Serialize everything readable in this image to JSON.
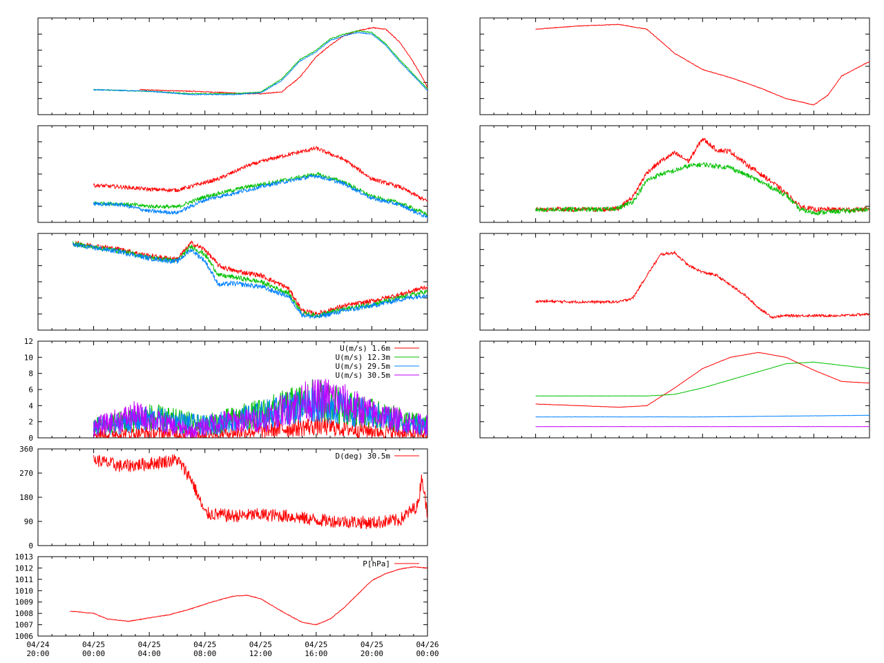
{
  "time_axis": {
    "labels": [
      {
        "date": "04/24",
        "time": "20:00"
      },
      {
        "date": "04/25",
        "time": "00:00"
      },
      {
        "date": "04/25",
        "time": "04:00"
      },
      {
        "date": "04/25",
        "time": "08:00"
      },
      {
        "date": "04/25",
        "time": "12:00"
      },
      {
        "date": "04/25",
        "time": "16:00"
      },
      {
        "date": "04/25",
        "time": "20:00"
      },
      {
        "date": "04/26",
        "time": "00:00"
      }
    ]
  },
  "colors": {
    "red": "#ff0000",
    "green": "#00c000",
    "blue": "#0080ff",
    "purple": "#c000ff"
  },
  "chart_data": [
    {
      "id": "left-1",
      "type": "line",
      "xlim": [
        -4,
        24
      ],
      "ylim": [
        0,
        6
      ],
      "series": [
        {
          "color": "#ff0000",
          "x": [
            3.3,
            5,
            7,
            10,
            10.5,
            12,
            13.5,
            14.8,
            16,
            17,
            18,
            19,
            20,
            21,
            22,
            22.8,
            23.5,
            24
          ],
          "y": [
            1.55,
            1.5,
            1.45,
            1.35,
            1.3,
            1.3,
            1.4,
            2.3,
            3.6,
            4.3,
            4.9,
            5.2,
            5.4,
            5.3,
            4.5,
            3.5,
            2.5,
            1.7
          ]
        },
        {
          "color": "#00c000",
          "x": [
            0,
            4,
            7,
            10,
            12,
            13.5,
            14.8,
            16,
            17,
            18,
            19,
            20,
            21,
            22,
            24
          ],
          "y": [
            1.55,
            1.45,
            1.3,
            1.3,
            1.4,
            2.2,
            3.4,
            4,
            4.7,
            5,
            5.2,
            5.1,
            4.4,
            3.4,
            1.6
          ]
        },
        {
          "color": "#0080ff",
          "x": [
            0,
            4,
            7,
            10,
            12,
            13.5,
            14.8,
            16,
            17,
            18,
            19,
            20,
            21,
            22,
            24
          ],
          "y": [
            1.55,
            1.45,
            1.25,
            1.25,
            1.35,
            2.1,
            3.3,
            3.9,
            4.6,
            4.9,
            5.1,
            5.0,
            4.3,
            3.3,
            1.5
          ]
        }
      ]
    },
    {
      "id": "left-2",
      "type": "line",
      "xlim": [
        -4,
        24
      ],
      "ylim": [
        0,
        6
      ],
      "series": [
        {
          "color": "#ff0000",
          "x": [
            0,
            2,
            4,
            6,
            9,
            11,
            13,
            16,
            18,
            20,
            22,
            24
          ],
          "y": [
            2.3,
            2.2,
            2.05,
            2.0,
            2.7,
            3.5,
            4.0,
            4.6,
            3.9,
            2.7,
            2.2,
            1.3
          ]
        },
        {
          "color": "#00c000",
          "x": [
            0,
            2,
            4,
            6,
            8,
            11,
            13,
            16,
            18,
            20,
            22,
            24
          ],
          "y": [
            1.2,
            1.15,
            1.0,
            0.95,
            1.6,
            2.2,
            2.5,
            3.0,
            2.5,
            1.6,
            1.2,
            0.5
          ]
        },
        {
          "color": "#0080ff",
          "x": [
            0,
            2,
            4,
            6,
            8,
            11,
            13,
            16,
            18,
            20,
            22,
            24
          ],
          "y": [
            1.15,
            1.1,
            0.7,
            0.6,
            1.4,
            2.0,
            2.4,
            2.9,
            2.4,
            1.5,
            1.1,
            0.3
          ]
        }
      ]
    },
    {
      "id": "left-3",
      "type": "line",
      "xlim": [
        -4,
        24
      ],
      "ylim": [
        0,
        6
      ],
      "series": [
        {
          "color": "#ff0000",
          "x": [
            -1.5,
            2,
            4,
            6,
            7,
            8,
            9,
            10,
            12,
            14,
            15,
            16,
            18,
            20,
            22,
            24
          ],
          "y": [
            5.4,
            5.0,
            4.6,
            4.4,
            5.4,
            5.0,
            4.0,
            3.7,
            3.4,
            2.6,
            1.2,
            1.0,
            1.5,
            1.8,
            2.2,
            2.7
          ]
        },
        {
          "color": "#00c000",
          "x": [
            -1.5,
            2,
            4,
            6,
            7,
            8,
            9,
            10,
            12,
            14,
            15,
            16,
            18,
            20,
            22,
            24
          ],
          "y": [
            5.35,
            4.9,
            4.5,
            4.3,
            5.2,
            4.7,
            3.4,
            3.3,
            3.0,
            2.3,
            1.05,
            0.9,
            1.3,
            1.6,
            2.0,
            2.4
          ]
        },
        {
          "color": "#0080ff",
          "x": [
            -1.5,
            2,
            4,
            6,
            7,
            8,
            9,
            10,
            12,
            14,
            15,
            16,
            18,
            20,
            22,
            24
          ],
          "y": [
            5.3,
            4.85,
            4.45,
            4.25,
            5.0,
            4.3,
            2.8,
            2.9,
            2.7,
            2.1,
            0.95,
            0.8,
            1.2,
            1.5,
            1.9,
            2.2
          ]
        }
      ]
    },
    {
      "id": "left-4",
      "type": "line",
      "xlim": [
        -4,
        24
      ],
      "ylim": [
        0,
        12
      ],
      "yticks": [
        "0",
        "2",
        "4",
        "6",
        "8",
        "10",
        "12"
      ],
      "series": [
        {
          "name": "U(m/s)  1.6m",
          "color": "#ff0000",
          "x": [
            0,
            4,
            8,
            12,
            16,
            20,
            24
          ],
          "y": [
            0.5,
            0.6,
            0.5,
            0.9,
            1.5,
            0.9,
            0.4
          ]
        },
        {
          "name": "U(m/s) 12.3m",
          "color": "#00c000",
          "x": [
            0,
            4,
            8,
            12,
            16,
            20,
            24
          ],
          "y": [
            1.4,
            2.6,
            1.6,
            3.0,
            4.8,
            3.0,
            1.5
          ]
        },
        {
          "name": "U(m/s) 29.5m",
          "color": "#0080ff",
          "x": [
            0,
            4,
            8,
            12,
            16,
            20,
            24
          ],
          "y": [
            1.3,
            2.4,
            1.5,
            2.8,
            4.4,
            2.8,
            1.4
          ]
        },
        {
          "name": "U(m/s) 30.5m",
          "color": "#c000ff",
          "x": [
            0,
            3,
            5,
            7,
            9,
            12,
            15,
            17,
            20,
            23,
            24
          ],
          "y": [
            1.3,
            2.8,
            1.8,
            0.8,
            2.0,
            2.2,
            4.5,
            5.0,
            3.0,
            1.8,
            1.6
          ]
        }
      ]
    },
    {
      "id": "left-5",
      "type": "line",
      "xlim": [
        -4,
        24
      ],
      "ylim": [
        0,
        360
      ],
      "yticks": [
        "0",
        "90",
        "180",
        "270",
        "360"
      ],
      "series": [
        {
          "name": "D(deg)  30.5m",
          "color": "#ff0000",
          "x": [
            0,
            2,
            4,
            6,
            7,
            8,
            10,
            12,
            14,
            16,
            18,
            20,
            22,
            23.3,
            23.6,
            24
          ],
          "y": [
            320,
            295,
            305,
            320,
            250,
            120,
            110,
            115,
            110,
            95,
            90,
            85,
            95,
            150,
            260,
            110
          ]
        }
      ]
    },
    {
      "id": "left-6",
      "type": "line",
      "xlim": [
        -4,
        24
      ],
      "ylim": [
        1006,
        1013
      ],
      "yticks": [
        "1006",
        "1007",
        "1008",
        "1009",
        "1010",
        "1011",
        "1012",
        "1013"
      ],
      "series": [
        {
          "name": "P[hPa]",
          "color": "#ff0000",
          "x": [
            -1.7,
            0,
            1,
            2.5,
            4,
            5.5,
            7,
            8.5,
            10,
            11,
            12,
            13.5,
            15,
            16,
            17,
            18,
            19,
            20,
            21,
            22,
            23,
            24
          ],
          "y": [
            1008.2,
            1008.0,
            1007.5,
            1007.3,
            1007.6,
            1007.9,
            1008.4,
            1009.0,
            1009.5,
            1009.6,
            1009.3,
            1008.2,
            1007.2,
            1007.0,
            1007.5,
            1008.5,
            1009.7,
            1010.9,
            1011.5,
            1011.9,
            1012.1,
            1012.0
          ]
        }
      ]
    },
    {
      "id": "right-1",
      "type": "line",
      "xlim": [
        -4,
        24
      ],
      "ylim": [
        0,
        6
      ],
      "series": [
        {
          "color": "#ff0000",
          "x": [
            0,
            3,
            6,
            8,
            10,
            12,
            14,
            16,
            18,
            20,
            21,
            22,
            24
          ],
          "y": [
            5.3,
            5.5,
            5.6,
            5.3,
            3.8,
            2.8,
            2.3,
            1.7,
            1.0,
            0.6,
            1.2,
            2.4,
            3.3
          ]
        }
      ]
    },
    {
      "id": "right-2",
      "type": "line",
      "xlim": [
        -4,
        24
      ],
      "ylim": [
        0,
        6
      ],
      "series": [
        {
          "color": "#ff0000",
          "x": [
            0,
            5,
            6,
            7,
            8,
            9,
            10,
            11,
            12,
            13,
            14,
            15,
            17,
            18,
            19,
            20,
            22,
            24
          ],
          "y": [
            0.8,
            0.8,
            0.9,
            1.6,
            3.1,
            3.8,
            4.3,
            3.8,
            5.2,
            4.5,
            4.4,
            3.7,
            2.5,
            1.8,
            1.0,
            0.8,
            0.8,
            0.8
          ]
        },
        {
          "color": "#00c000",
          "x": [
            0,
            5,
            6,
            7,
            8,
            9,
            10,
            11,
            12,
            13,
            14,
            16,
            18,
            19,
            20,
            22,
            24
          ],
          "y": [
            0.8,
            0.8,
            0.9,
            1.3,
            2.6,
            3.0,
            3.2,
            3.5,
            3.6,
            3.5,
            3.4,
            2.6,
            1.7,
            0.8,
            0.6,
            0.7,
            0.8
          ]
        }
      ]
    },
    {
      "id": "right-3",
      "type": "line",
      "xlim": [
        -4,
        24
      ],
      "ylim": [
        0,
        6
      ],
      "series": [
        {
          "color": "#ff0000",
          "x": [
            0,
            3,
            6,
            7,
            8,
            9,
            10,
            11,
            12,
            13,
            14,
            15,
            16,
            17,
            18,
            19,
            20,
            22,
            24
          ],
          "y": [
            1.8,
            1.75,
            1.75,
            2.0,
            3.4,
            4.7,
            4.8,
            4.0,
            3.6,
            3.4,
            2.8,
            2.2,
            1.4,
            0.8,
            0.9,
            0.9,
            0.9,
            0.9,
            1.0
          ]
        }
      ]
    },
    {
      "id": "right-4",
      "type": "line",
      "xlim": [
        -4,
        24
      ],
      "ylim": [
        0,
        6
      ],
      "series": [
        {
          "color": "#ff0000",
          "x": [
            0,
            3,
            6,
            8,
            10,
            12,
            14,
            16,
            18,
            20,
            22,
            24
          ],
          "y": [
            2.1,
            2.0,
            1.9,
            2.0,
            3.1,
            4.3,
            5.0,
            5.3,
            5.0,
            4.2,
            3.5,
            3.4
          ]
        },
        {
          "color": "#00c000",
          "x": [
            0,
            4,
            8,
            10,
            12,
            14,
            16,
            18,
            20,
            22,
            24
          ],
          "y": [
            2.6,
            2.6,
            2.6,
            2.7,
            3.1,
            3.6,
            4.1,
            4.6,
            4.7,
            4.5,
            4.3
          ]
        },
        {
          "color": "#0080ff",
          "x": [
            0,
            12,
            24
          ],
          "y": [
            1.3,
            1.3,
            1.4
          ]
        },
        {
          "color": "#c000ff",
          "x": [
            0,
            12,
            24
          ],
          "y": [
            0.7,
            0.7,
            0.7
          ]
        }
      ]
    }
  ]
}
